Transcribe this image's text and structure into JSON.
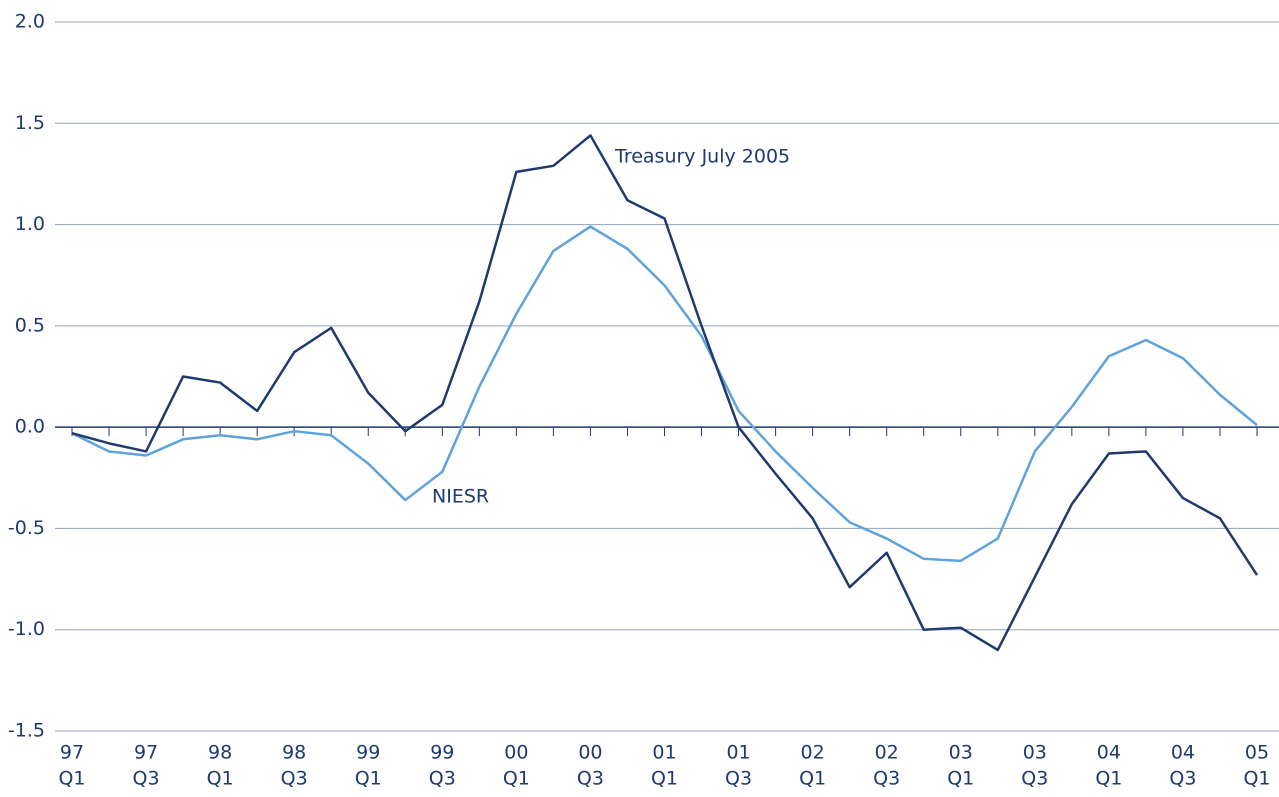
{
  "chart_data": {
    "type": "line",
    "categories": [
      [
        "97",
        "Q1"
      ],
      null,
      [
        "97",
        "Q3"
      ],
      null,
      [
        "98",
        "Q1"
      ],
      null,
      [
        "98",
        "Q3"
      ],
      null,
      [
        "99",
        "Q1"
      ],
      null,
      [
        "99",
        "Q3"
      ],
      null,
      [
        "00",
        "Q1"
      ],
      null,
      [
        "00",
        "Q3"
      ],
      null,
      [
        "01",
        "Q1"
      ],
      null,
      [
        "01",
        "Q3"
      ],
      null,
      [
        "02",
        "Q1"
      ],
      null,
      [
        "02",
        "Q3"
      ],
      null,
      [
        "03",
        "Q1"
      ],
      null,
      [
        "03",
        "Q3"
      ],
      null,
      [
        "04",
        "Q1"
      ],
      null,
      [
        "04",
        "Q3"
      ],
      null,
      [
        "05",
        "Q1"
      ]
    ],
    "series": [
      {
        "name": "Treasury July 2005",
        "color": "#1f3a6e",
        "values": [
          -0.03,
          -0.08,
          -0.12,
          0.25,
          0.22,
          0.08,
          0.37,
          0.49,
          0.17,
          -0.02,
          0.11,
          0.62,
          1.26,
          1.29,
          1.44,
          1.12,
          1.03,
          0.5,
          0.0,
          -0.23,
          -0.45,
          -0.79,
          -0.62,
          -1.0,
          -0.99,
          -1.1,
          -0.74,
          -0.38,
          -0.13,
          -0.12,
          -0.35,
          -0.45,
          -0.73
        ]
      },
      {
        "name": "NIESR",
        "color": "#5fa3dc",
        "values": [
          -0.03,
          -0.12,
          -0.14,
          -0.06,
          -0.04,
          -0.06,
          -0.02,
          -0.04,
          -0.18,
          -0.36,
          -0.22,
          0.2,
          0.56,
          0.87,
          0.99,
          0.88,
          0.7,
          0.45,
          0.08,
          -0.12,
          -0.3,
          -0.47,
          -0.55,
          -0.65,
          -0.66,
          -0.55,
          -0.12,
          0.1,
          0.35,
          0.43,
          0.34,
          0.16,
          0.01
        ]
      }
    ],
    "ylim": [
      -1.5,
      2.0
    ],
    "yticks": [
      {
        "value": -1.5,
        "label": "-1.5"
      },
      {
        "value": -1.0,
        "label": "-1.0"
      },
      {
        "value": -0.5,
        "label": "-0.5"
      },
      {
        "value": 0,
        "label": "0.0"
      },
      {
        "value": 0.5,
        "label": "0.5"
      },
      {
        "value": 1.0,
        "label": "1.0"
      },
      {
        "value": 1.5,
        "label": "1.5"
      },
      {
        "value": 2.0,
        "label": "2.0"
      }
    ],
    "grid": true
  }
}
